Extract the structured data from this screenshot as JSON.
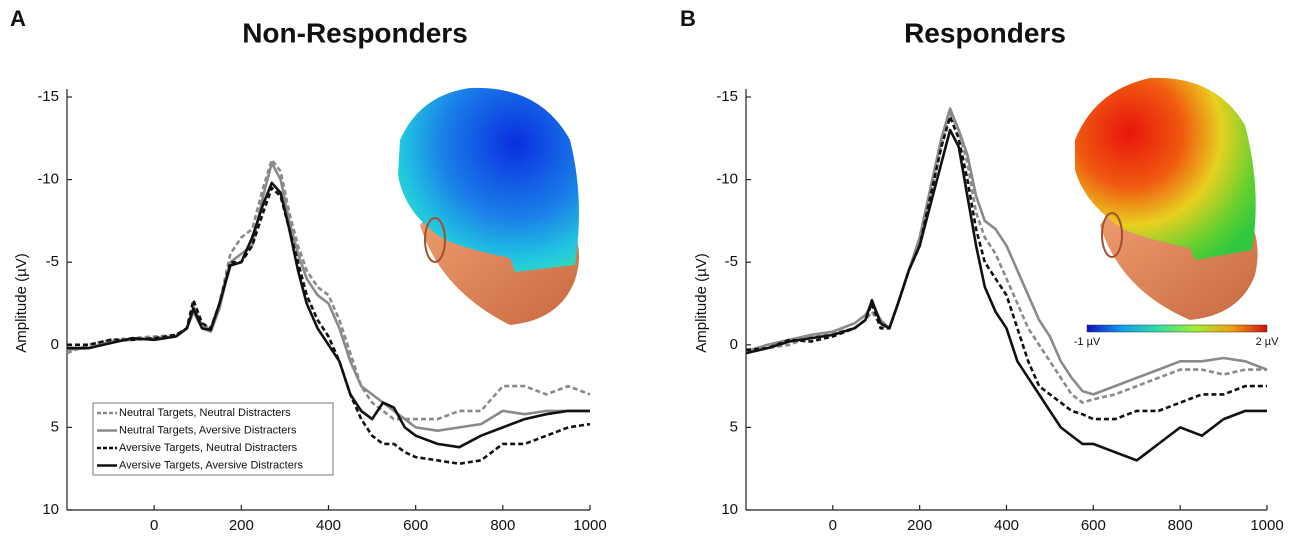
{
  "chart_data": [
    {
      "type": "line",
      "panel": "A",
      "title": "Non-Responders",
      "y_label": "Amplitude (µV)",
      "xlim": [
        -200,
        1000
      ],
      "xticks": [
        0,
        200,
        400,
        600,
        800,
        1000
      ],
      "ylim": [
        -15,
        10
      ],
      "yticks": [
        -15,
        -10,
        -5,
        0,
        5,
        10
      ],
      "y_inverted": true,
      "legend": "lower left",
      "x": [
        -200,
        -150,
        -100,
        -50,
        0,
        50,
        75,
        90,
        110,
        130,
        150,
        175,
        200,
        225,
        250,
        270,
        290,
        310,
        330,
        350,
        375,
        400,
        425,
        450,
        475,
        500,
        525,
        550,
        575,
        600,
        650,
        700,
        750,
        800,
        850,
        900,
        950,
        1000
      ],
      "series": [
        {
          "name": "Neutral Targets, Neutral Distracters",
          "color": "#8a8a8a",
          "dashed": true,
          "values": [
            0.5,
            0,
            -0.3,
            -0.4,
            -0.5,
            -0.6,
            -1,
            -2.3,
            -1.2,
            -1,
            -2.5,
            -5.5,
            -6.5,
            -7,
            -9.5,
            -11.2,
            -10.5,
            -8,
            -6,
            -4.5,
            -3.5,
            -3,
            -1.5,
            0.5,
            2.5,
            3.5,
            4,
            4.5,
            4.5,
            4.5,
            4.5,
            4,
            4,
            2.5,
            2.5,
            3,
            2.5,
            3
          ]
        },
        {
          "name": "Neutral Targets, Aversive Distracters",
          "color": "#8a8a8a",
          "dashed": false,
          "values": [
            0.3,
            0.2,
            -0.2,
            -0.3,
            -0.4,
            -0.5,
            -1,
            -2,
            -1,
            -0.8,
            -2.2,
            -5,
            -5.5,
            -6,
            -9,
            -11,
            -10,
            -7.5,
            -5.5,
            -4,
            -3,
            -2.5,
            -1,
            1,
            2.5,
            3,
            3.5,
            4,
            4.5,
            5,
            5.2,
            5,
            4.8,
            4,
            4.2,
            4,
            4,
            4
          ]
        },
        {
          "name": "Aversive Targets, Neutral Distracters",
          "color": "#111111",
          "dashed": true,
          "values": [
            0,
            0,
            -0.3,
            -0.3,
            -0.4,
            -0.6,
            -1,
            -2.7,
            -1.3,
            -1,
            -2.5,
            -5,
            -5,
            -6,
            -8,
            -9.5,
            -9,
            -7,
            -5,
            -3,
            -1.5,
            -0.5,
            1,
            3,
            4.5,
            5.5,
            6,
            6,
            6.5,
            6.8,
            7,
            7.2,
            7,
            6,
            6,
            5.5,
            5,
            4.8
          ]
        },
        {
          "name": "Aversive Targets, Aversive Distracters",
          "color": "#111111",
          "dashed": false,
          "values": [
            0.2,
            0.2,
            -0.1,
            -0.4,
            -0.3,
            -0.5,
            -1,
            -2.2,
            -1,
            -0.9,
            -2.5,
            -4.8,
            -5,
            -6.5,
            -8.5,
            -9.8,
            -9.2,
            -7,
            -4.5,
            -2.5,
            -1,
            0,
            1,
            3,
            4,
            4.5,
            3.5,
            3.8,
            5,
            5.5,
            6,
            6.2,
            5.5,
            5,
            4.5,
            4.2,
            4,
            4
          ]
        }
      ]
    },
    {
      "type": "line",
      "panel": "B",
      "title": "Responders",
      "y_label": "Amplitude (µV)",
      "xlim": [
        -200,
        1000
      ],
      "xticks": [
        0,
        200,
        400,
        600,
        800,
        1000
      ],
      "ylim": [
        -15,
        10
      ],
      "yticks": [
        -15,
        -10,
        -5,
        0,
        5,
        10
      ],
      "y_inverted": true,
      "colorbar": {
        "min_label": "-1 µV",
        "max_label": "2 µV"
      },
      "x": [
        -200,
        -150,
        -100,
        -50,
        0,
        50,
        75,
        90,
        110,
        130,
        150,
        175,
        200,
        225,
        250,
        270,
        290,
        310,
        330,
        350,
        375,
        400,
        425,
        450,
        475,
        500,
        525,
        550,
        575,
        600,
        650,
        700,
        750,
        800,
        850,
        900,
        950,
        1000
      ],
      "series": [
        {
          "color": "#8a8a8a",
          "dashed": true,
          "values": [
            0.5,
            0.2,
            0,
            -0.5,
            -0.7,
            -1,
            -1.5,
            -2,
            -1.2,
            -1,
            -2.5,
            -4.5,
            -6,
            -9,
            -12,
            -14,
            -13,
            -11,
            -8,
            -6.5,
            -5.5,
            -4,
            -2.5,
            -1,
            0,
            1,
            2,
            3,
            3.5,
            3.3,
            3,
            2.5,
            2,
            1.5,
            1.5,
            1.8,
            1.5,
            1.5
          ]
        },
        {
          "color": "#8a8a8a",
          "dashed": false,
          "values": [
            0.4,
            0,
            -0.3,
            -0.6,
            -0.8,
            -1.3,
            -1.8,
            -2.5,
            -1.5,
            -1,
            -2.5,
            -4.5,
            -6.5,
            -9.5,
            -12.5,
            -14.3,
            -13,
            -11.5,
            -9,
            -7.5,
            -7,
            -6,
            -4.5,
            -3,
            -1.5,
            -0.5,
            1,
            2,
            2.8,
            3,
            2.5,
            2,
            1.5,
            1,
            1,
            0.8,
            1,
            1.5
          ]
        },
        {
          "color": "#111111",
          "dashed": true,
          "values": [
            0.3,
            0.2,
            -0.3,
            -0.2,
            -0.5,
            -1,
            -1.5,
            -2.5,
            -1,
            -1,
            -2.5,
            -4.5,
            -6,
            -9,
            -12,
            -13.8,
            -12.5,
            -10,
            -7,
            -5,
            -4,
            -3,
            -1,
            1,
            2.5,
            3,
            3.5,
            4,
            4.2,
            4.5,
            4.5,
            4,
            4,
            3.5,
            3,
            3,
            2.5,
            2.5
          ]
        },
        {
          "color": "#111111",
          "dashed": false,
          "values": [
            0.5,
            0.2,
            -0.2,
            -0.4,
            -0.6,
            -1,
            -1.5,
            -2.7,
            -1.3,
            -1,
            -2.5,
            -4.5,
            -6,
            -8.5,
            -11,
            -13,
            -12,
            -9,
            -6,
            -3.5,
            -2,
            -1,
            1,
            2,
            3,
            4,
            5,
            5.5,
            6,
            6,
            6.5,
            7,
            6,
            5,
            5.5,
            4.5,
            4,
            4
          ]
        }
      ]
    }
  ]
}
